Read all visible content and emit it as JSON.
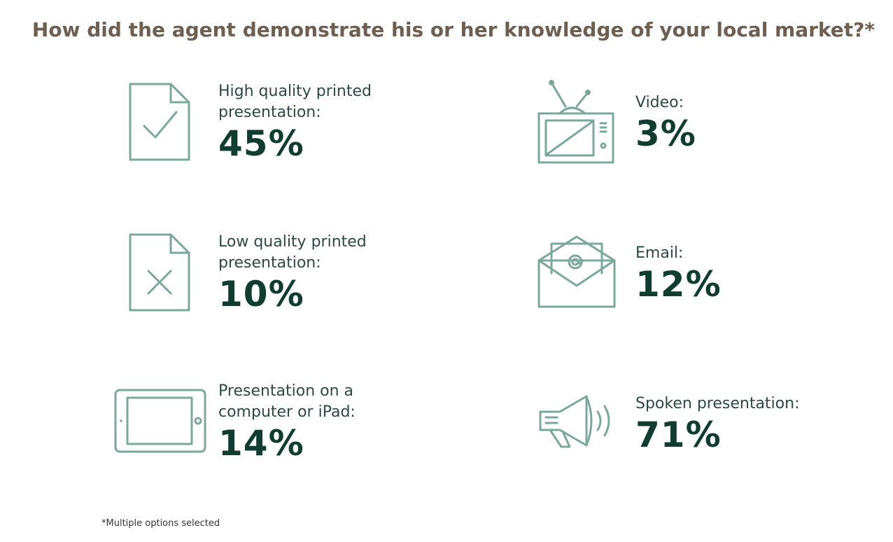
{
  "chart_data": {
    "type": "table",
    "title": "How did the agent demonstrate his or her knowledge of your local market?*",
    "items": [
      {
        "label_lines": [
          "High quality printed",
          "presentation:"
        ],
        "value": "45%",
        "icon": "document-check-icon"
      },
      {
        "label_lines": [
          "Low quality printed",
          "presentation:"
        ],
        "value": "10%",
        "icon": "document-x-icon"
      },
      {
        "label_lines": [
          "Presentation on a",
          "computer or iPad:"
        ],
        "value": "14%",
        "icon": "tablet-icon"
      },
      {
        "label_lines": [
          "Video:"
        ],
        "value": "3%",
        "icon": "tv-icon"
      },
      {
        "label_lines": [
          "Email:"
        ],
        "value": "12%",
        "icon": "envelope-at-icon"
      },
      {
        "label_lines": [
          "Spoken presentation:"
        ],
        "value": "71%",
        "icon": "megaphone-icon"
      }
    ],
    "footnote": "*Multiple options selected"
  },
  "colors": {
    "title": "#6e5f50",
    "icon_stroke": "#7aa89b",
    "value": "#0f3d30",
    "label": "#2a4a42"
  }
}
